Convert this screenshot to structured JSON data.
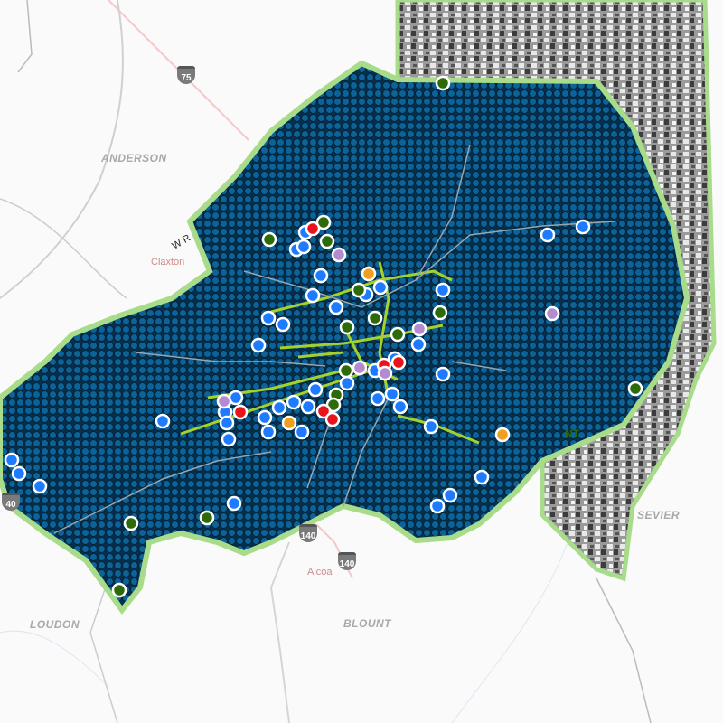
{
  "map": {
    "county_labels": [
      "ANDERSON",
      "LOUDON",
      "BLOUNT",
      "SEVIER"
    ],
    "city_labels": [
      "Claxton",
      "Alcoa"
    ],
    "road_labels": [
      "W R"
    ],
    "partial_labels": [
      "NT"
    ],
    "highway_shields": [
      "75",
      "140",
      "140",
      "40"
    ],
    "colors": {
      "county_fill": "#0a5a8a",
      "dot_stroke": "#06304a",
      "grid_border": "#a8dc8a",
      "trail": "#a6d12a",
      "marker_blue": "#1e7bff",
      "marker_green": "#2d6a0a",
      "marker_red": "#e8141c",
      "marker_purple": "#b48ad0",
      "marker_orange": "#f0a020",
      "terrain": "#6e6e6e"
    },
    "marker_types": [
      "blue",
      "green",
      "red",
      "purple",
      "orange"
    ]
  }
}
